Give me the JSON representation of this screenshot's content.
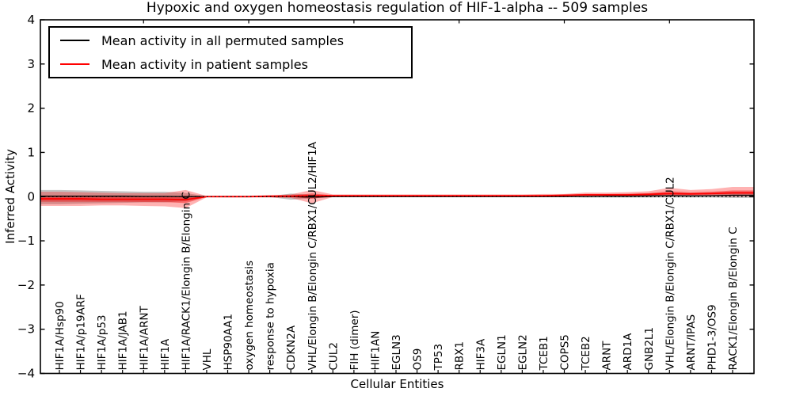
{
  "figure": {
    "kind": "matplotlib-plot"
  },
  "chart_data": {
    "type": "line",
    "title": "Hypoxic and oxygen homeostasis regulation of HIF-1-alpha -- 509 samples",
    "xlabel": "Cellular Entities",
    "ylabel": "Inferred Activity",
    "ylim": [
      -4,
      4
    ],
    "yticks": [
      4,
      3,
      2,
      1,
      0,
      -1,
      -2,
      -3,
      -4
    ],
    "grid": false,
    "legend_position": "upper left",
    "legend": [
      {
        "label": "Mean activity in all permuted samples",
        "color": "#000000"
      },
      {
        "label": "Mean activity in patient samples",
        "color": "#ff0000"
      }
    ],
    "zero_line": {
      "y": 0,
      "style": "dotted",
      "color": "#000000"
    },
    "xticks_top_at_positions": [
      5,
      10,
      15,
      20,
      25,
      30
    ],
    "categories": [
      "HIF1A/Hsp90",
      "HIF1A/p19ARF",
      "HIF1A/p53",
      "HIF1A/JAB1",
      "HIF1A/ARNT",
      "HIF1A",
      "HIF1A/RACK1/Elongin B/Elongin C",
      "VHL",
      "HSP90AA1",
      "oxygen homeostasis",
      "response to hypoxia",
      "CDKN2A",
      "VHL/Elongin B/Elongin C/RBX1/CUL2/HIF1A",
      "CUL2",
      "FIH (dimer)",
      "HIF1AN",
      "EGLN3",
      "OS9",
      "TP53",
      "RBX1",
      "HIF3A",
      "EGLN1",
      "EGLN2",
      "TCEB1",
      "COPS5",
      "TCEB2",
      "ARNT",
      "ARD1A",
      "GNB2L1",
      "VHL/Elongin B/Elongin C/RBX1/CUL2",
      "ARNT/IPAS",
      "PHD1-3/OS9",
      "RACK1/Elongin B/Elongin C"
    ],
    "series": [
      {
        "name": "Mean activity in all permuted samples",
        "color": "#000000",
        "values": [
          0.01,
          0.01,
          0.01,
          0.01,
          0.005,
          0.005,
          0,
          0,
          0,
          0,
          0,
          0,
          -0.01,
          0,
          0,
          0,
          0,
          0,
          0,
          0,
          0,
          0,
          0,
          0,
          0,
          0.005,
          0.01,
          0.01,
          0.015,
          0.02,
          0.015,
          0.02,
          0.03
        ]
      },
      {
        "name": "Mean activity in patient samples",
        "color": "#ff0000",
        "values": [
          -0.05,
          -0.05,
          -0.06,
          -0.06,
          -0.06,
          -0.06,
          -0.07,
          0,
          0,
          0,
          0.01,
          0.01,
          0.02,
          0.02,
          0.02,
          0.02,
          0.02,
          0.02,
          0.02,
          0.02,
          0.02,
          0.02,
          0.02,
          0.02,
          0.03,
          0.04,
          0.04,
          0.04,
          0.05,
          0.07,
          0.06,
          0.07,
          0.085
        ]
      }
    ],
    "bands": [
      {
        "name": "permuted-samples-band",
        "color": "rgba(60,60,60,0.30)",
        "lo": [
          -0.17,
          -0.16,
          -0.15,
          -0.14,
          -0.13,
          -0.13,
          -0.1,
          -0.01,
          -0.01,
          -0.01,
          -0.01,
          -0.07,
          -0.04,
          -0.01,
          -0.01,
          -0.01,
          -0.01,
          -0.01,
          -0.01,
          -0.01,
          -0.01,
          -0.01,
          -0.01,
          -0.01,
          -0.01,
          -0.02,
          -0.02,
          -0.02,
          -0.02,
          -0.02,
          -0.02,
          -0.02,
          -0.03
        ],
        "hi": [
          0.15,
          0.14,
          0.13,
          0.12,
          0.11,
          0.11,
          0.08,
          0.01,
          0.01,
          0.01,
          0.01,
          0.07,
          0.04,
          0.01,
          0.01,
          0.01,
          0.01,
          0.01,
          0.01,
          0.01,
          0.01,
          0.01,
          0.01,
          0.01,
          0.01,
          0.03,
          0.03,
          0.03,
          0.04,
          0.05,
          0.04,
          0.05,
          0.07
        ]
      },
      {
        "name": "patient-band-outer",
        "color": "rgba(255,0,0,0.30)",
        "lo": [
          -0.21,
          -0.21,
          -0.2,
          -0.2,
          -0.21,
          -0.22,
          -0.26,
          -0.015,
          -0.02,
          -0.02,
          -0.02,
          -0.03,
          -0.15,
          -0.01,
          0,
          0,
          0,
          0,
          0,
          0,
          0,
          0,
          0,
          0,
          0,
          0,
          0,
          0,
          0,
          0,
          0.01,
          0.01,
          0
        ],
        "hi": [
          0.11,
          0.1,
          0.09,
          0.08,
          0.08,
          0.08,
          0.15,
          0.015,
          0.02,
          0.02,
          0.03,
          0.05,
          0.15,
          0.05,
          0.05,
          0.05,
          0.05,
          0.05,
          0.05,
          0.05,
          0.05,
          0.05,
          0.05,
          0.06,
          0.06,
          0.09,
          0.09,
          0.1,
          0.12,
          0.2,
          0.15,
          0.17,
          0.22
        ]
      },
      {
        "name": "patient-band-inner",
        "color": "rgba(235,0,0,0.42)",
        "lo": [
          -0.114,
          -0.114,
          -0.116,
          -0.116,
          -0.12,
          -0.124,
          -0.146,
          -0.006,
          -0.008,
          -0.008,
          -0.002,
          -0.006,
          -0.048,
          0.008,
          0.012,
          0.012,
          0.012,
          0.012,
          0.012,
          0.012,
          0.012,
          0.012,
          0.012,
          0.012,
          0.018,
          0.024,
          0.024,
          0.024,
          0.03,
          0.042,
          0.04,
          0.046,
          0.051
        ],
        "hi": [
          0.014,
          0.01,
          0,
          -0.004,
          -0.004,
          -0.004,
          0.018,
          0.006,
          0.008,
          0.008,
          0.018,
          0.026,
          0.072,
          0.032,
          0.032,
          0.032,
          0.032,
          0.032,
          0.032,
          0.032,
          0.032,
          0.032,
          0.032,
          0.036,
          0.042,
          0.06,
          0.06,
          0.064,
          0.078,
          0.122,
          0.096,
          0.11,
          0.139
        ]
      }
    ]
  }
}
